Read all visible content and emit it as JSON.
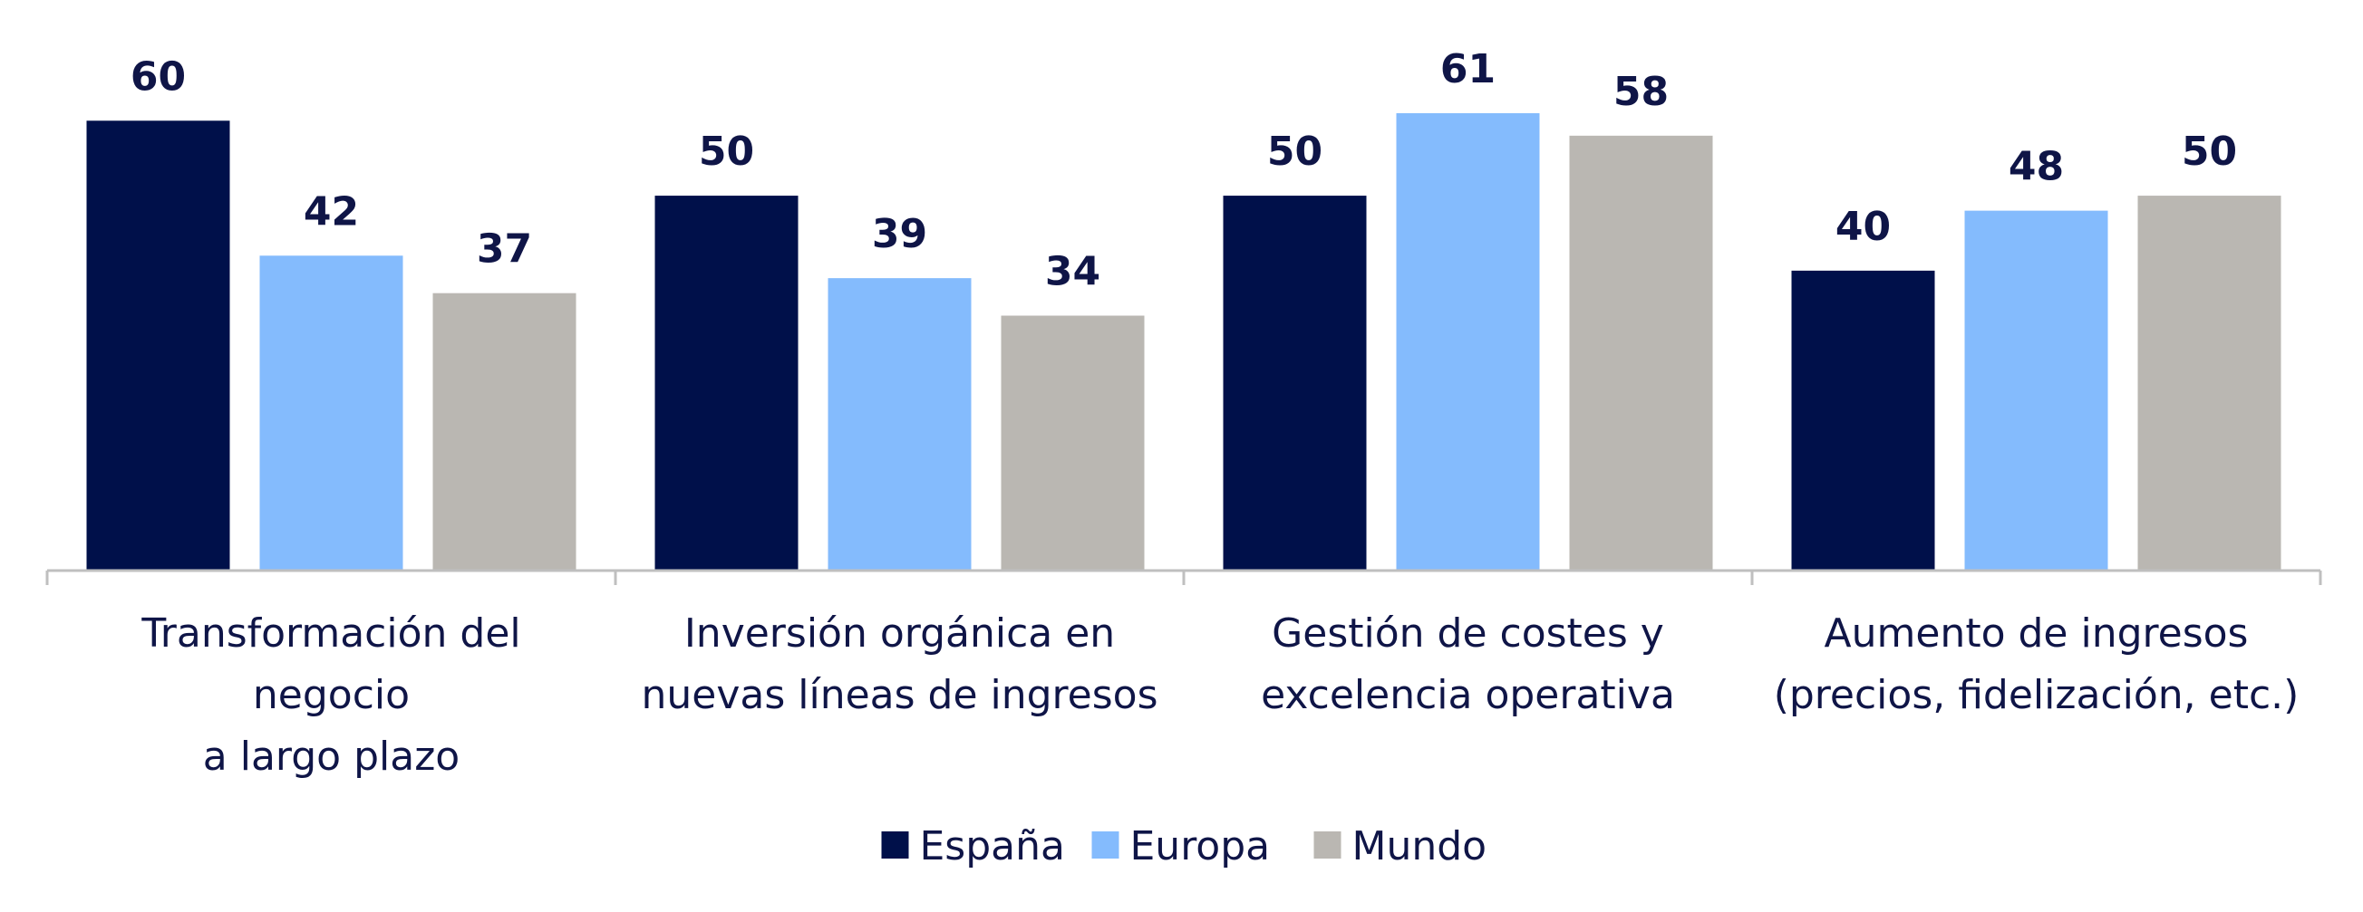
{
  "chart_data": {
    "type": "bar",
    "categories": [
      [
        "Transformación del",
        "negocio",
        "a largo plazo"
      ],
      [
        "Inversión orgánica en",
        "nuevas líneas de ingresos"
      ],
      [
        "Gestión de costes y",
        "excelencia operativa"
      ],
      [
        "Aumento de ingresos",
        "(precios, fidelización, etc.)"
      ]
    ],
    "series": [
      {
        "name": "España",
        "values": [
          60,
          50,
          50,
          40
        ],
        "color": "#00104a"
      },
      {
        "name": "Europa",
        "values": [
          42,
          39,
          61,
          48
        ],
        "color": "#84bbfd"
      },
      {
        "name": "Mundo",
        "values": [
          37,
          34,
          58,
          50
        ],
        "color": "#bab7b2"
      }
    ],
    "ylim": [
      0,
      61
    ],
    "title": "",
    "xlabel": "",
    "ylabel": "",
    "grid": false,
    "legend_position": "bottom-center",
    "axis_color": "#bfbfbf"
  }
}
